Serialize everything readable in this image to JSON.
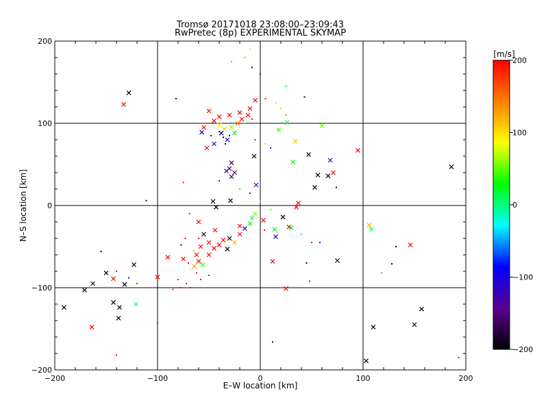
{
  "chart_data": {
    "type": "scatter",
    "title": "Tromsø 20171018 23:08:00–23:09:43",
    "subtitle": "RwPretec (8p) EXPERIMENTAL SKYMAP",
    "xlabel": "E–W location [km]",
    "ylabel": "N–S location [km]",
    "xlim": [
      -200,
      200
    ],
    "ylim": [
      -200,
      200
    ],
    "xticks": [
      -200,
      -100,
      0,
      100,
      200
    ],
    "yticks": [
      -200,
      -100,
      0,
      100,
      200
    ],
    "xtick_labels": [
      "−200",
      "−100",
      "0",
      "100",
      "200"
    ],
    "ytick_labels": [
      "−200",
      "−100",
      "0",
      "100",
      "200"
    ],
    "grid": true,
    "colorbar": {
      "label": "[m/s]",
      "min": -200,
      "max": 200,
      "ticks": [
        200,
        100,
        0,
        -100,
        -200
      ],
      "tick_labels": [
        "200",
        "100",
        "0",
        "−100",
        "−200"
      ],
      "colors": [
        "#000000",
        "#5a008f",
        "#0000ff",
        "#00ffff",
        "#00ff00",
        "#ffff00",
        "#ff8000",
        "#ff0000"
      ]
    },
    "series": [
      {
        "marker": "cross",
        "points": [
          {
            "x": -128,
            "y": 137,
            "v": -200
          },
          {
            "x": -133,
            "y": 123,
            "v": 200
          },
          {
            "x": -57,
            "y": 89,
            "v": -100
          },
          {
            "x": -40,
            "y": 108,
            "v": 200
          },
          {
            "x": -30,
            "y": 110,
            "v": 200
          },
          {
            "x": -20,
            "y": 113,
            "v": 200
          },
          {
            "x": -10,
            "y": 118,
            "v": 200
          },
          {
            "x": -5,
            "y": 128,
            "v": 200
          },
          {
            "x": -55,
            "y": 95,
            "v": 200
          },
          {
            "x": -50,
            "y": 115,
            "v": 200
          },
          {
            "x": -45,
            "y": 103,
            "v": 200
          },
          {
            "x": -35,
            "y": 93,
            "v": 110
          },
          {
            "x": -28,
            "y": 95,
            "v": 60
          },
          {
            "x": -22,
            "y": 100,
            "v": 150
          },
          {
            "x": -38,
            "y": 88,
            "v": -100
          },
          {
            "x": -45,
            "y": 75,
            "v": -110
          },
          {
            "x": -52,
            "y": 70,
            "v": 200
          },
          {
            "x": -32,
            "y": 80,
            "v": -100
          },
          {
            "x": -25,
            "y": 88,
            "v": 20
          },
          {
            "x": -40,
            "y": 98,
            "v": 90
          },
          {
            "x": -18,
            "y": 105,
            "v": 200
          },
          {
            "x": -12,
            "y": 110,
            "v": 200
          },
          {
            "x": -28,
            "y": 52,
            "v": -170
          },
          {
            "x": -30,
            "y": 45,
            "v": -160
          },
          {
            "x": -25,
            "y": 40,
            "v": -150
          },
          {
            "x": -28,
            "y": 35,
            "v": -170
          },
          {
            "x": -33,
            "y": 42,
            "v": -150
          },
          {
            "x": -6,
            "y": 60,
            "v": -200
          },
          {
            "x": 18,
            "y": 92,
            "v": 40
          },
          {
            "x": 26,
            "y": 101,
            "v": 10
          },
          {
            "x": 34,
            "y": 78,
            "v": 110
          },
          {
            "x": 32,
            "y": 53,
            "v": 30
          },
          {
            "x": 60,
            "y": 97,
            "v": 50
          },
          {
            "x": 47,
            "y": 62,
            "v": -200
          },
          {
            "x": 68,
            "y": 55,
            "v": -100
          },
          {
            "x": 56,
            "y": 37,
            "v": -200
          },
          {
            "x": 71,
            "y": 40,
            "v": 200
          },
          {
            "x": 66,
            "y": 36,
            "v": -200
          },
          {
            "x": 53,
            "y": 22,
            "v": -200
          },
          {
            "x": 95,
            "y": 67,
            "v": 200
          },
          {
            "x": 186,
            "y": 47,
            "v": -200
          },
          {
            "x": -4,
            "y": 25,
            "v": -130
          },
          {
            "x": -46,
            "y": 5,
            "v": -200
          },
          {
            "x": -29,
            "y": 6,
            "v": -200
          },
          {
            "x": -43,
            "y": -2,
            "v": -200
          },
          {
            "x": -60,
            "y": -20,
            "v": 200
          },
          {
            "x": -55,
            "y": -35,
            "v": -200
          },
          {
            "x": -50,
            "y": -45,
            "v": 200
          },
          {
            "x": -58,
            "y": -50,
            "v": 200
          },
          {
            "x": -62,
            "y": -60,
            "v": 200
          },
          {
            "x": -60,
            "y": -68,
            "v": 200
          },
          {
            "x": -64,
            "y": -74,
            "v": 120
          },
          {
            "x": -56,
            "y": -72,
            "v": 40
          },
          {
            "x": -50,
            "y": -60,
            "v": 200
          },
          {
            "x": -45,
            "y": -52,
            "v": 200
          },
          {
            "x": -40,
            "y": -48,
            "v": 200
          },
          {
            "x": -36,
            "y": -42,
            "v": 200
          },
          {
            "x": -30,
            "y": -40,
            "v": -200
          },
          {
            "x": -25,
            "y": -45,
            "v": 120
          },
          {
            "x": -20,
            "y": -35,
            "v": 200
          },
          {
            "x": -15,
            "y": -28,
            "v": -100
          },
          {
            "x": -10,
            "y": -22,
            "v": 30
          },
          {
            "x": -8,
            "y": -15,
            "v": 10
          },
          {
            "x": -5,
            "y": -10,
            "v": 60
          },
          {
            "x": 3,
            "y": -18,
            "v": 200
          },
          {
            "x": 22,
            "y": -14,
            "v": -200
          },
          {
            "x": 28,
            "y": -26,
            "v": 200
          },
          {
            "x": 14,
            "y": -29,
            "v": 20
          },
          {
            "x": 30,
            "y": -27,
            "v": 20
          },
          {
            "x": 15,
            "y": -38,
            "v": -100
          },
          {
            "x": 37,
            "y": 3,
            "v": 200
          },
          {
            "x": 35,
            "y": -2,
            "v": 200
          },
          {
            "x": -20,
            "y": -25,
            "v": 200
          },
          {
            "x": -75,
            "y": -65,
            "v": 200
          },
          {
            "x": -90,
            "y": -63,
            "v": 200
          },
          {
            "x": -100,
            "y": -87,
            "v": 200
          },
          {
            "x": -123,
            "y": -72,
            "v": -200
          },
          {
            "x": -150,
            "y": -82,
            "v": -200
          },
          {
            "x": -143,
            "y": -89,
            "v": 200
          },
          {
            "x": -163,
            "y": -95,
            "v": -200
          },
          {
            "x": -171,
            "y": -103,
            "v": -200
          },
          {
            "x": -132,
            "y": -96,
            "v": -200
          },
          {
            "x": -143,
            "y": -118,
            "v": -200
          },
          {
            "x": -137,
            "y": -124,
            "v": -200
          },
          {
            "x": -138,
            "y": -137,
            "v": -200
          },
          {
            "x": -121,
            "y": -120,
            "v": 0
          },
          {
            "x": -164,
            "y": -148,
            "v": 200
          },
          {
            "x": -191,
            "y": -124,
            "v": -200
          },
          {
            "x": 12,
            "y": -68,
            "v": 200
          },
          {
            "x": 75,
            "y": -67,
            "v": -170
          },
          {
            "x": 25,
            "y": -101,
            "v": 200
          },
          {
            "x": 106,
            "y": -24,
            "v": 120
          },
          {
            "x": 108,
            "y": -29,
            "v": 10
          },
          {
            "x": 146,
            "y": -48,
            "v": 200
          },
          {
            "x": 157,
            "y": -126,
            "v": -200
          },
          {
            "x": 150,
            "y": -145,
            "v": -200
          },
          {
            "x": 110,
            "y": -148,
            "v": -200
          },
          {
            "x": 103,
            "y": -189,
            "v": -200
          },
          {
            "x": -44,
            "y": -30,
            "v": 200
          },
          {
            "x": -32,
            "y": -53,
            "v": -200
          }
        ]
      },
      {
        "marker": "dot",
        "points": [
          {
            "x": -82,
            "y": 130,
            "v": -200
          },
          {
            "x": 43,
            "y": 132,
            "v": -200
          },
          {
            "x": -10,
            "y": 190,
            "v": 80
          },
          {
            "x": -15,
            "y": 180,
            "v": 40
          },
          {
            "x": -28,
            "y": 175,
            "v": 20
          },
          {
            "x": -8,
            "y": 168,
            "v": -200
          },
          {
            "x": 0,
            "y": 160,
            "v": -100
          },
          {
            "x": 25,
            "y": 145,
            "v": 30
          },
          {
            "x": 5,
            "y": 130,
            "v": 200
          },
          {
            "x": 15,
            "y": 125,
            "v": 60
          },
          {
            "x": 20,
            "y": 118,
            "v": 110
          },
          {
            "x": 25,
            "y": 110,
            "v": 150
          },
          {
            "x": -48,
            "y": 85,
            "v": -100
          },
          {
            "x": -36,
            "y": 83,
            "v": -200
          },
          {
            "x": -30,
            "y": 85,
            "v": -200
          },
          {
            "x": -24,
            "y": 90,
            "v": 0
          },
          {
            "x": -20,
            "y": 95,
            "v": 100
          },
          {
            "x": -15,
            "y": 100,
            "v": 120
          },
          {
            "x": -8,
            "y": 105,
            "v": 200
          },
          {
            "x": -40,
            "y": 90,
            "v": -150
          },
          {
            "x": -34,
            "y": 75,
            "v": -200
          },
          {
            "x": -5,
            "y": 80,
            "v": 200
          },
          {
            "x": 5,
            "y": 75,
            "v": 60
          },
          {
            "x": 10,
            "y": 70,
            "v": -100
          },
          {
            "x": -40,
            "y": 30,
            "v": -100
          },
          {
            "x": -20,
            "y": 20,
            "v": 30
          },
          {
            "x": -10,
            "y": 15,
            "v": -100
          },
          {
            "x": 0,
            "y": 5,
            "v": 60
          },
          {
            "x": 10,
            "y": -5,
            "v": 20
          },
          {
            "x": -75,
            "y": 28,
            "v": 200
          },
          {
            "x": -111,
            "y": 6,
            "v": -200
          },
          {
            "x": -69,
            "y": -10,
            "v": 200
          },
          {
            "x": -73,
            "y": -40,
            "v": 200
          },
          {
            "x": -77,
            "y": -48,
            "v": -200
          },
          {
            "x": -60,
            "y": -40,
            "v": 200
          },
          {
            "x": -65,
            "y": -55,
            "v": 120
          },
          {
            "x": -70,
            "y": -70,
            "v": 200
          },
          {
            "x": -67,
            "y": -78,
            "v": 80
          },
          {
            "x": -62,
            "y": -82,
            "v": 200
          },
          {
            "x": -58,
            "y": -90,
            "v": 200
          },
          {
            "x": -50,
            "y": -85,
            "v": 200
          },
          {
            "x": -72,
            "y": -95,
            "v": 200
          },
          {
            "x": -80,
            "y": -90,
            "v": 200
          },
          {
            "x": -78,
            "y": -100,
            "v": 200
          },
          {
            "x": -68,
            "y": -100,
            "v": 200
          },
          {
            "x": -85,
            "y": -102,
            "v": 200
          },
          {
            "x": -155,
            "y": -56,
            "v": -200
          },
          {
            "x": -140,
            "y": -80,
            "v": 200
          },
          {
            "x": -128,
            "y": -88,
            "v": -100
          },
          {
            "x": -120,
            "y": -95,
            "v": 200
          },
          {
            "x": -100,
            "y": -143,
            "v": 200
          },
          {
            "x": -140,
            "y": -182,
            "v": 200
          },
          {
            "x": 40,
            "y": -35,
            "v": 20
          },
          {
            "x": 50,
            "y": -45,
            "v": 200
          },
          {
            "x": 58,
            "y": -45,
            "v": -100
          },
          {
            "x": 45,
            "y": -70,
            "v": -200
          },
          {
            "x": 48,
            "y": -92,
            "v": 200
          },
          {
            "x": 132,
            "y": -50,
            "v": -200
          },
          {
            "x": 128,
            "y": -71,
            "v": -200
          },
          {
            "x": 118,
            "y": -82,
            "v": 20
          },
          {
            "x": 74,
            "y": 22,
            "v": -200
          },
          {
            "x": 12,
            "y": -166,
            "v": -200
          },
          {
            "x": 193,
            "y": -185,
            "v": 200
          },
          {
            "x": 4,
            "y": -30,
            "v": 200
          }
        ]
      }
    ]
  }
}
